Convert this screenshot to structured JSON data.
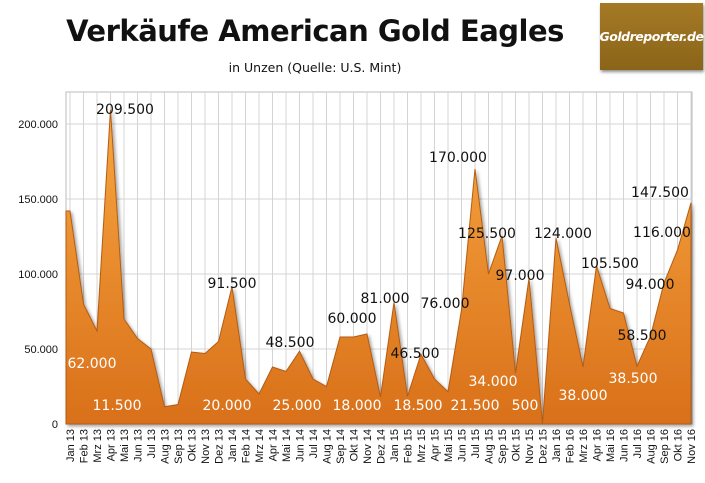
{
  "chart_data": {
    "type": "area",
    "title": "Verkäufe American Gold Eagles",
    "subtitle": "in Unzen (Quelle: U.S. Mint)",
    "xlabel": "",
    "ylabel": "",
    "ylim": [
      0,
      220000
    ],
    "yticks": [
      0,
      50000,
      100000,
      150000,
      200000
    ],
    "ytick_labels": [
      "0",
      "50.000",
      "100.000",
      "150.000",
      "200.000"
    ],
    "grid": true,
    "categories": [
      "Jan 13",
      "Feb 13",
      "Mrz 13",
      "Apr 13",
      "Mai 13",
      "Jun 13",
      "Jul 13",
      "Aug 13",
      "Sep 13",
      "Okt 13",
      "Nov 13",
      "Dez 13",
      "Jan 14",
      "Feb 14",
      "Mrz 14",
      "Apr 14",
      "Mai 14",
      "Jun 14",
      "Jul 14",
      "Aug 14",
      "Sep 14",
      "Okt 14",
      "Nov 14",
      "Dez 14",
      "Jan 15",
      "Feb 15",
      "Mrz 15",
      "Apr 15",
      "Mai 15",
      "Jun 15",
      "Jul 15",
      "Aug 15",
      "Sep 15",
      "Okt 15",
      "Nov 15",
      "Dez 15",
      "Jan 16",
      "Feb 16",
      "Mrz 16",
      "Apr 16",
      "Mai 16",
      "Jun 16",
      "Jul 16",
      "Aug 16",
      "Sep 16",
      "Okt 16",
      "Nov 16"
    ],
    "values": [
      142000,
      80000,
      62000,
      209500,
      70000,
      57000,
      50000,
      11500,
      13000,
      48000,
      47000,
      55000,
      91500,
      30000,
      20000,
      38000,
      35000,
      48500,
      30000,
      25000,
      58000,
      58000,
      60000,
      18000,
      81000,
      18500,
      46500,
      30000,
      21500,
      76000,
      170000,
      100000,
      125500,
      34000,
      97000,
      500,
      124000,
      80000,
      38000,
      105500,
      77000,
      74000,
      38500,
      58500,
      94000,
      116000,
      147500
    ],
    "data_labels": [
      {
        "index": 2,
        "text": "62.000"
      },
      {
        "index": 3,
        "text": "209.500"
      },
      {
        "index": 7,
        "text": "11.500"
      },
      {
        "index": 12,
        "text": "91.500"
      },
      {
        "index": 14,
        "text": "20.000"
      },
      {
        "index": 17,
        "text": "48.500"
      },
      {
        "index": 19,
        "text": "25.000"
      },
      {
        "index": 22,
        "text": "60.000"
      },
      {
        "index": 23,
        "text": "18.000"
      },
      {
        "index": 24,
        "text": "81.000"
      },
      {
        "index": 25,
        "text": "18.500"
      },
      {
        "index": 26,
        "text": "46.500"
      },
      {
        "index": 28,
        "text": "21.500"
      },
      {
        "index": 29,
        "text": "76.000"
      },
      {
        "index": 30,
        "text": "170.000"
      },
      {
        "index": 32,
        "text": "125.500"
      },
      {
        "index": 33,
        "text": "34.000"
      },
      {
        "index": 34,
        "text": "97.000"
      },
      {
        "index": 35,
        "text": "500"
      },
      {
        "index": 36,
        "text": "124.000"
      },
      {
        "index": 38,
        "text": "38.000"
      },
      {
        "index": 39,
        "text": "105.500"
      },
      {
        "index": 42,
        "text": "38.500"
      },
      {
        "index": 43,
        "text": "58.500"
      },
      {
        "index": 44,
        "text": "94.000"
      },
      {
        "index": 45,
        "text": "116.000"
      },
      {
        "index": 46,
        "text": "147.500"
      }
    ],
    "colors": {
      "fill_top": "#f7a640",
      "fill_bottom": "#d9701a",
      "edge": "#b35c12",
      "grid": "#d4d4d4",
      "label_dark": "#111111",
      "label_light": "#ffffff"
    }
  },
  "logo": {
    "text": "Goldreporter.de"
  }
}
